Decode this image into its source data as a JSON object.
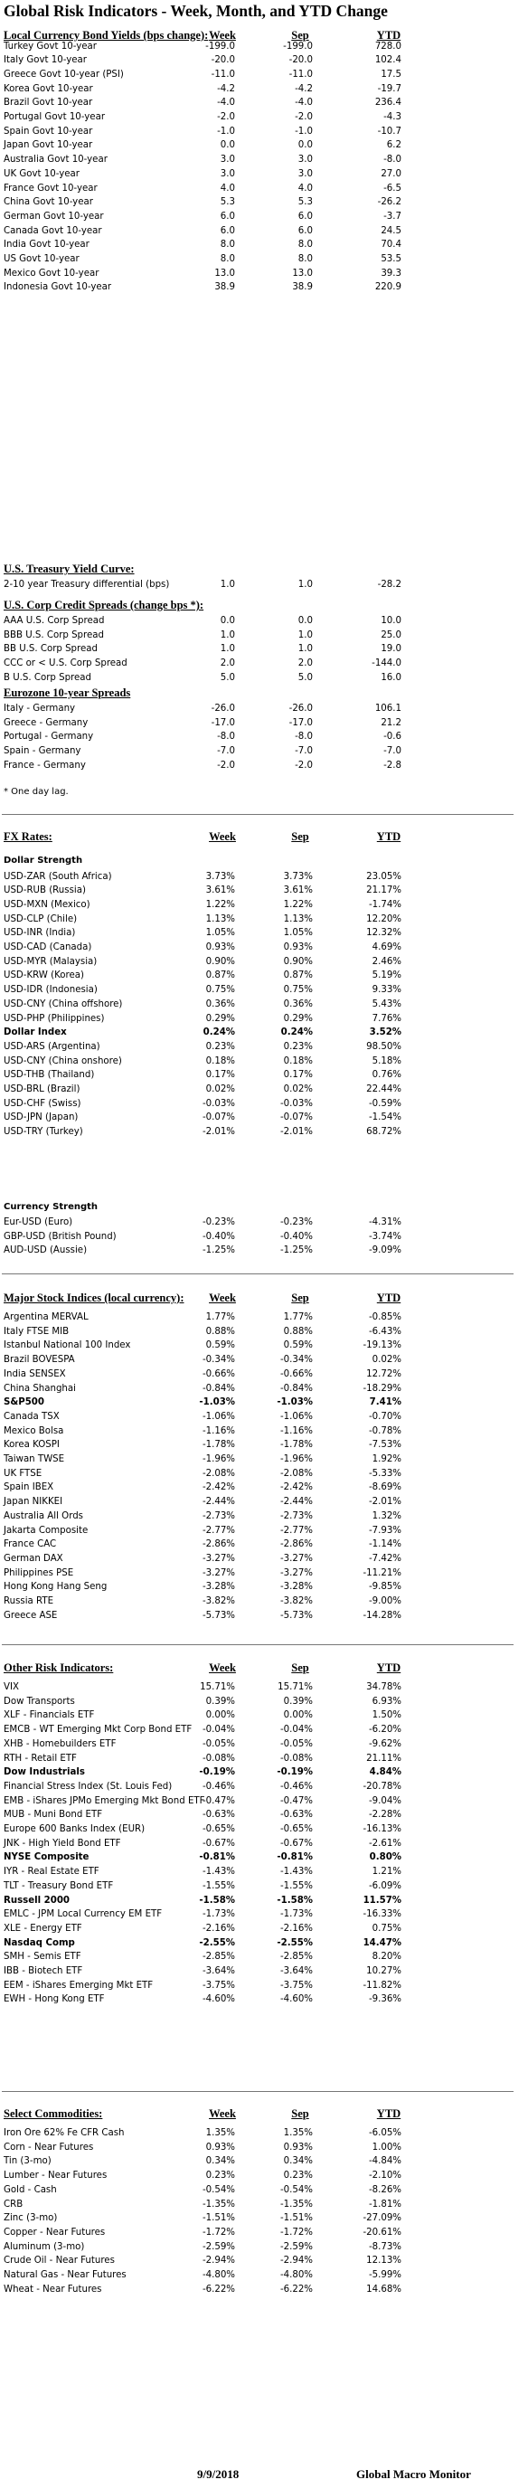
{
  "title": "Global Risk Indicators - Week, Month, and YTD Change",
  "footer": {
    "date": "9/9/2018",
    "brand": "Global Macro Monitor"
  },
  "sections": [
    {
      "header": "Local Currency Bond Yields (bps change):",
      "columns": [
        "Week",
        "Sep",
        "YTD"
      ],
      "groups": [
        {
          "sub": "",
          "rows": [
            {
              "label": "Turkey Govt 10-year",
              "week": "-199.0",
              "sep": "-199.0",
              "ytd": "728.0"
            },
            {
              "label": "Italy Govt 10-year",
              "week": "-20.0",
              "sep": "-20.0",
              "ytd": "102.4"
            },
            {
              "label": "Greece Govt 10-year (PSI)",
              "week": "-11.0",
              "sep": "-11.0",
              "ytd": "17.5"
            },
            {
              "label": "Korea Govt 10-year",
              "week": "-4.2",
              "sep": "-4.2",
              "ytd": "-19.7"
            },
            {
              "label": "Brazil Govt 10-year",
              "week": "-4.0",
              "sep": "-4.0",
              "ytd": "236.4"
            },
            {
              "label": "Portugal Govt 10-year",
              "week": "-2.0",
              "sep": "-2.0",
              "ytd": "-4.3"
            },
            {
              "label": "Spain Govt 10-year",
              "week": "-1.0",
              "sep": "-1.0",
              "ytd": "-10.7"
            },
            {
              "label": "Japan Govt 10-year",
              "week": "0.0",
              "sep": "0.0",
              "ytd": "6.2"
            },
            {
              "label": "Australia Govt 10-year",
              "week": "3.0",
              "sep": "3.0",
              "ytd": "-8.0"
            },
            {
              "label": "UK Govt 10-year",
              "week": "3.0",
              "sep": "3.0",
              "ytd": "27.0"
            },
            {
              "label": "France Govt 10-year",
              "week": "4.0",
              "sep": "4.0",
              "ytd": "-6.5"
            },
            {
              "label": "China Govt 10-year",
              "week": "5.3",
              "sep": "5.3",
              "ytd": "-26.2"
            },
            {
              "label": "German Govt 10-year",
              "week": "6.0",
              "sep": "6.0",
              "ytd": "-3.7"
            },
            {
              "label": "Canada Govt 10-year",
              "week": "6.0",
              "sep": "6.0",
              "ytd": "24.5"
            },
            {
              "label": "India Govt 10-year",
              "week": "8.0",
              "sep": "8.0",
              "ytd": "70.4"
            },
            {
              "label": "US Govt 10-year",
              "week": "8.0",
              "sep": "8.0",
              "ytd": "53.5"
            },
            {
              "label": "Mexico Govt 10-year",
              "week": "13.0",
              "sep": "13.0",
              "ytd": "39.3"
            },
            {
              "label": "Indonesia Govt 10-year",
              "week": "38.9",
              "sep": "38.9",
              "ytd": "220.9"
            }
          ]
        }
      ]
    },
    {
      "header": "U.S. Treasury Yield Curve:",
      "columns": [],
      "groups": [
        {
          "sub": "",
          "rows": [
            {
              "label": "2-10 year Treasury differential (bps)",
              "week": "1.0",
              "sep": "1.0",
              "ytd": "-28.2"
            }
          ]
        }
      ]
    },
    {
      "header": "U.S. Corp Credit Spreads (change bps *):",
      "columns": [],
      "groups": [
        {
          "sub": "",
          "rows": [
            {
              "label": "AAA U.S. Corp Spread",
              "week": "0.0",
              "sep": "0.0",
              "ytd": "10.0"
            },
            {
              "label": "BBB U.S. Corp Spread",
              "week": "1.0",
              "sep": "1.0",
              "ytd": "25.0"
            },
            {
              "label": "BB U.S. Corp Spread",
              "week": "1.0",
              "sep": "1.0",
              "ytd": "19.0"
            },
            {
              "label": "CCC or < U.S. Corp Spread",
              "week": "2.0",
              "sep": "2.0",
              "ytd": "-144.0"
            },
            {
              "label": "B U.S. Corp Spread",
              "week": "5.0",
              "sep": "5.0",
              "ytd": "16.0"
            }
          ]
        }
      ]
    },
    {
      "header": "Eurozone 10-year Spreads",
      "columns": [],
      "groups": [
        {
          "sub": "",
          "rows": [
            {
              "label": "Italy - Germany",
              "week": "-26.0",
              "sep": "-26.0",
              "ytd": "106.1"
            },
            {
              "label": "Greece - Germany",
              "week": "-17.0",
              "sep": "-17.0",
              "ytd": "21.2"
            },
            {
              "label": "Portugal - Germany",
              "week": "-8.0",
              "sep": "-8.0",
              "ytd": "-0.6"
            },
            {
              "label": "Spain - Germany",
              "week": "-7.0",
              "sep": "-7.0",
              "ytd": "-7.0"
            },
            {
              "label": "France - Germany",
              "week": "-2.0",
              "sep": "-2.0",
              "ytd": "-2.8"
            }
          ]
        }
      ],
      "note": "* One day lag."
    },
    {
      "header": "FX Rates:",
      "columns": [
        "Week",
        "Sep",
        "YTD"
      ],
      "groups": [
        {
          "sub": "Dollar Strength",
          "rows": [
            {
              "label": "USD-ZAR (South Africa)",
              "week": "3.73%",
              "sep": "3.73%",
              "ytd": "23.05%"
            },
            {
              "label": "USD-RUB (Russia)",
              "week": "3.61%",
              "sep": "3.61%",
              "ytd": "21.17%"
            },
            {
              "label": "USD-MXN  (Mexico)",
              "week": "1.22%",
              "sep": "1.22%",
              "ytd": "-1.74%"
            },
            {
              "label": "USD-CLP (Chile)",
              "week": "1.13%",
              "sep": "1.13%",
              "ytd": "12.20%"
            },
            {
              "label": "USD-INR (India)",
              "week": "1.05%",
              "sep": "1.05%",
              "ytd": "12.32%"
            },
            {
              "label": "USD-CAD (Canada)",
              "week": "0.93%",
              "sep": "0.93%",
              "ytd": "4.69%"
            },
            {
              "label": "USD-MYR (Malaysia)",
              "week": "0.90%",
              "sep": "0.90%",
              "ytd": "2.46%"
            },
            {
              "label": "USD-KRW (Korea)",
              "week": "0.87%",
              "sep": "0.87%",
              "ytd": "5.19%"
            },
            {
              "label": "USD-IDR (Indonesia)",
              "week": "0.75%",
              "sep": "0.75%",
              "ytd": "9.33%"
            },
            {
              "label": "USD-CNY (China offshore)",
              "week": "0.36%",
              "sep": "0.36%",
              "ytd": "5.43%"
            },
            {
              "label": "USD-PHP (Philippines)",
              "week": "0.29%",
              "sep": "0.29%",
              "ytd": "7.76%"
            },
            {
              "label": "Dollar Index",
              "week": "0.24%",
              "sep": "0.24%",
              "ytd": "3.52%",
              "bold": true
            },
            {
              "label": "USD-ARS (Argentina)",
              "week": "0.23%",
              "sep": "0.23%",
              "ytd": "98.50%"
            },
            {
              "label": "USD-CNY (China onshore)",
              "week": "0.18%",
              "sep": "0.18%",
              "ytd": "5.18%"
            },
            {
              "label": "USD-THB  (Thailand)",
              "week": "0.17%",
              "sep": "0.17%",
              "ytd": "0.76%"
            },
            {
              "label": "USD-BRL (Brazil)",
              "week": "0.02%",
              "sep": "0.02%",
              "ytd": "22.44%"
            },
            {
              "label": "USD-CHF (Swiss)",
              "week": "-0.03%",
              "sep": "-0.03%",
              "ytd": "-0.59%"
            },
            {
              "label": "USD-JPN (Japan)",
              "week": "-0.07%",
              "sep": "-0.07%",
              "ytd": "-1.54%"
            },
            {
              "label": "USD-TRY (Turkey)",
              "week": "-2.01%",
              "sep": "-2.01%",
              "ytd": "68.72%"
            }
          ]
        },
        {
          "sub": "Currency Strength",
          "rows": [
            {
              "label": "Eur-USD (Euro)",
              "week": "-0.23%",
              "sep": "-0.23%",
              "ytd": "-4.31%"
            },
            {
              "label": "GBP-USD (British Pound)",
              "week": "-0.40%",
              "sep": "-0.40%",
              "ytd": "-3.74%"
            },
            {
              "label": "AUD-USD (Aussie)",
              "week": "-1.25%",
              "sep": "-1.25%",
              "ytd": "-9.09%"
            }
          ]
        }
      ]
    },
    {
      "header": "Major Stock Indices (local currency):",
      "columns": [
        "Week",
        "Sep",
        "YTD"
      ],
      "groups": [
        {
          "sub": "",
          "rows": [
            {
              "label": "Argentina MERVAL",
              "week": "1.77%",
              "sep": "1.77%",
              "ytd": "-0.85%"
            },
            {
              "label": "Italy FTSE MIB",
              "week": "0.88%",
              "sep": "0.88%",
              "ytd": "-6.43%"
            },
            {
              "label": "Istanbul National 100 Index",
              "week": "0.59%",
              "sep": "0.59%",
              "ytd": "-19.13%"
            },
            {
              "label": "Brazil BOVESPA",
              "week": "-0.34%",
              "sep": "-0.34%",
              "ytd": "0.02%"
            },
            {
              "label": "India SENSEX",
              "week": "-0.66%",
              "sep": "-0.66%",
              "ytd": "12.72%"
            },
            {
              "label": "China Shanghai",
              "week": "-0.84%",
              "sep": "-0.84%",
              "ytd": "-18.29%"
            },
            {
              "label": "S&P500",
              "week": "-1.03%",
              "sep": "-1.03%",
              "ytd": "7.41%",
              "bold": true
            },
            {
              "label": "Canada TSX",
              "week": "-1.06%",
              "sep": "-1.06%",
              "ytd": "-0.70%"
            },
            {
              "label": "Mexico Bolsa",
              "week": "-1.16%",
              "sep": "-1.16%",
              "ytd": "-0.78%"
            },
            {
              "label": "Korea KOSPI",
              "week": "-1.78%",
              "sep": "-1.78%",
              "ytd": "-7.53%"
            },
            {
              "label": "Taiwan  TWSE",
              "week": "-1.96%",
              "sep": "-1.96%",
              "ytd": "1.92%"
            },
            {
              "label": "UK FTSE",
              "week": "-2.08%",
              "sep": "-2.08%",
              "ytd": "-5.33%"
            },
            {
              "label": "Spain IBEX",
              "week": "-2.42%",
              "sep": "-2.42%",
              "ytd": "-8.69%"
            },
            {
              "label": "Japan NIKKEI",
              "week": "-2.44%",
              "sep": "-2.44%",
              "ytd": "-2.01%"
            },
            {
              "label": "Australia All Ords",
              "week": "-2.73%",
              "sep": "-2.73%",
              "ytd": "1.32%"
            },
            {
              "label": "Jakarta Composite",
              "week": "-2.77%",
              "sep": "-2.77%",
              "ytd": "-7.93%"
            },
            {
              "label": "France CAC",
              "week": "-2.86%",
              "sep": "-2.86%",
              "ytd": "-1.14%"
            },
            {
              "label": "German DAX",
              "week": "-3.27%",
              "sep": "-3.27%",
              "ytd": "-7.42%"
            },
            {
              "label": "Philippines PSE",
              "week": "-3.27%",
              "sep": "-3.27%",
              "ytd": "-11.21%"
            },
            {
              "label": "Hong Kong Hang Seng",
              "week": "-3.28%",
              "sep": "-3.28%",
              "ytd": "-9.85%"
            },
            {
              "label": "Russia RTE",
              "week": "-3.82%",
              "sep": "-3.82%",
              "ytd": "-9.00%"
            },
            {
              "label": "Greece ASE",
              "week": "-5.73%",
              "sep": "-5.73%",
              "ytd": "-14.28%"
            }
          ]
        }
      ]
    },
    {
      "header": "Other Risk Indicators:",
      "columns": [
        "Week",
        "Sep",
        "YTD"
      ],
      "groups": [
        {
          "sub": "",
          "rows": [
            {
              "label": "VIX",
              "week": "15.71%",
              "sep": "15.71%",
              "ytd": "34.78%"
            },
            {
              "label": "Dow Transports",
              "week": "0.39%",
              "sep": "0.39%",
              "ytd": "6.93%"
            },
            {
              "label": "XLF - Financials ETF",
              "week": "0.00%",
              "sep": "0.00%",
              "ytd": "1.50%"
            },
            {
              "label": "EMCB - WT Emerging Mkt Corp Bond ETF",
              "week": "-0.04%",
              "sep": "-0.04%",
              "ytd": "-6.20%"
            },
            {
              "label": "XHB - Homebuilders ETF",
              "week": "-0.05%",
              "sep": "-0.05%",
              "ytd": "-9.62%"
            },
            {
              "label": "RTH - Retail ETF",
              "week": "-0.08%",
              "sep": "-0.08%",
              "ytd": "21.11%"
            },
            {
              "label": "Dow Industrials",
              "week": "-0.19%",
              "sep": "-0.19%",
              "ytd": "4.84%",
              "bold": true
            },
            {
              "label": "Financial Stress Index (St. Louis Fed)",
              "week": "-0.46%",
              "sep": "-0.46%",
              "ytd": "-20.78%"
            },
            {
              "label": "EMB - iShares JPMo Emerging Mkt Bond ETF",
              "week": "-0.47%",
              "sep": "-0.47%",
              "ytd": "-9.04%"
            },
            {
              "label": "MUB - Muni Bond ETF",
              "week": "-0.63%",
              "sep": "-0.63%",
              "ytd": "-2.28%"
            },
            {
              "label": "Europe 600 Banks Index (EUR)",
              "week": "-0.65%",
              "sep": "-0.65%",
              "ytd": "-16.13%"
            },
            {
              "label": "JNK - High Yield Bond ETF",
              "week": "-0.67%",
              "sep": "-0.67%",
              "ytd": "-2.61%"
            },
            {
              "label": "NYSE Composite",
              "week": "-0.81%",
              "sep": "-0.81%",
              "ytd": "0.80%",
              "bold": true
            },
            {
              "label": "IYR - Real Estate ETF",
              "week": "-1.43%",
              "sep": "-1.43%",
              "ytd": "1.21%"
            },
            {
              "label": "TLT - Treasury Bond ETF",
              "week": "-1.55%",
              "sep": "-1.55%",
              "ytd": "-6.09%"
            },
            {
              "label": "Russell 2000",
              "week": "-1.58%",
              "sep": "-1.58%",
              "ytd": "11.57%",
              "bold": true
            },
            {
              "label": "EMLC - JPM Local Currency EM ETF",
              "week": "-1.73%",
              "sep": "-1.73%",
              "ytd": "-16.33%"
            },
            {
              "label": "XLE - Energy ETF",
              "week": "-2.16%",
              "sep": "-2.16%",
              "ytd": "0.75%"
            },
            {
              "label": "Nasdaq Comp",
              "week": "-2.55%",
              "sep": "-2.55%",
              "ytd": "14.47%",
              "bold": true
            },
            {
              "label": "SMH - Semis ETF",
              "week": "-2.85%",
              "sep": "-2.85%",
              "ytd": "8.20%"
            },
            {
              "label": "IBB - Biotech ETF",
              "week": "-3.64%",
              "sep": "-3.64%",
              "ytd": "10.27%"
            },
            {
              "label": "EEM - iShares Emerging Mkt ETF",
              "week": "-3.75%",
              "sep": "-3.75%",
              "ytd": "-11.82%"
            },
            {
              "label": "EWH - Hong Kong ETF",
              "week": "-4.60%",
              "sep": "-4.60%",
              "ytd": "-9.36%"
            }
          ]
        }
      ]
    },
    {
      "header": "Select Commodities:",
      "columns": [
        "Week",
        "Sep",
        "YTD"
      ],
      "groups": [
        {
          "sub": "",
          "rows": [
            {
              "label": "Iron Ore 62% Fe CFR Cash",
              "week": "1.35%",
              "sep": "1.35%",
              "ytd": "-6.05%"
            },
            {
              "label": "Corn - Near Futures",
              "week": "0.93%",
              "sep": "0.93%",
              "ytd": "1.00%"
            },
            {
              "label": "Tin (3-mo)",
              "week": "0.34%",
              "sep": "0.34%",
              "ytd": "-4.84%"
            },
            {
              "label": "Lumber - Near Futures",
              "week": "0.23%",
              "sep": "0.23%",
              "ytd": "-2.10%"
            },
            {
              "label": "Gold - Cash",
              "week": "-0.54%",
              "sep": "-0.54%",
              "ytd": "-8.26%"
            },
            {
              "label": "CRB",
              "week": "-1.35%",
              "sep": "-1.35%",
              "ytd": "-1.81%"
            },
            {
              "label": "Zinc (3-mo)",
              "week": "-1.51%",
              "sep": "-1.51%",
              "ytd": "-27.09%"
            },
            {
              "label": "Copper - Near Futures",
              "week": "-1.72%",
              "sep": "-1.72%",
              "ytd": "-20.61%"
            },
            {
              "label": "Aluminum (3-mo)",
              "week": "-2.59%",
              "sep": "-2.59%",
              "ytd": "-8.73%"
            },
            {
              "label": "Crude Oil - Near Futures",
              "week": "-2.94%",
              "sep": "-2.94%",
              "ytd": "12.13%"
            },
            {
              "label": "Natural Gas - Near Futures",
              "week": "-4.80%",
              "sep": "-4.80%",
              "ytd": "-5.99%"
            },
            {
              "label": "Wheat - Near Futures",
              "week": "-6.22%",
              "sep": "-6.22%",
              "ytd": "14.68%"
            }
          ]
        }
      ]
    }
  ]
}
